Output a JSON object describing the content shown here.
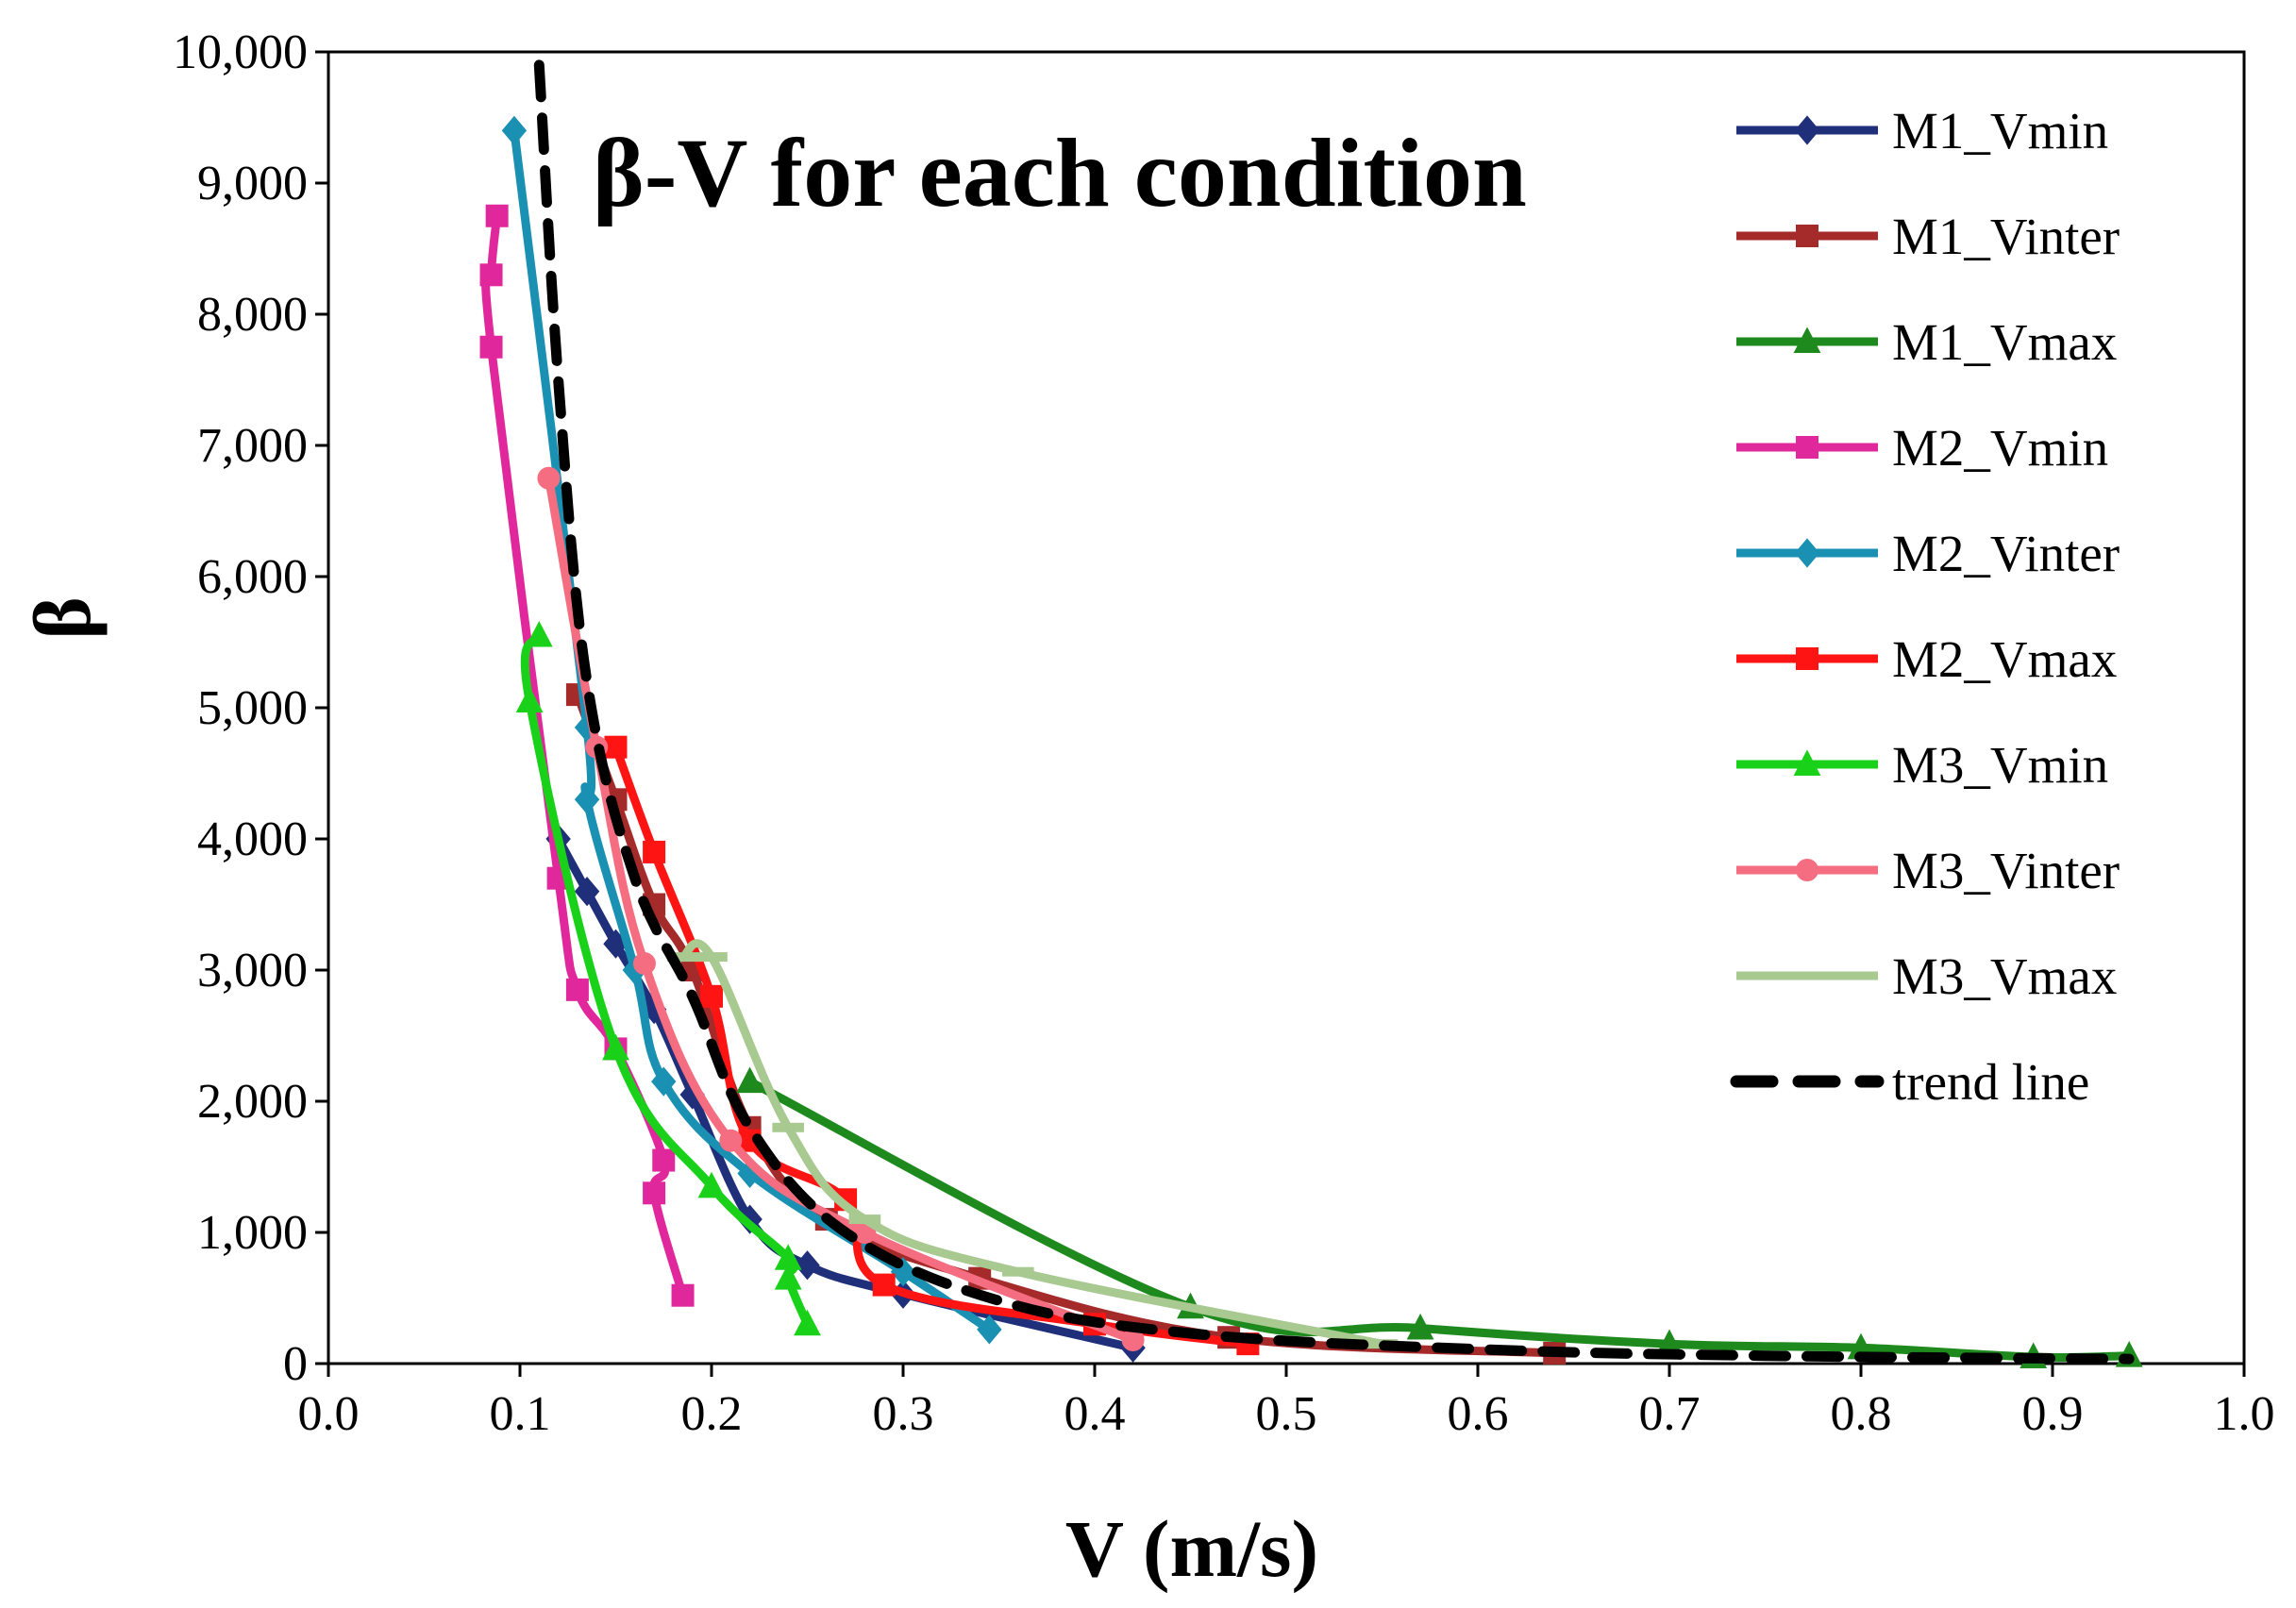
{
  "chart_data": {
    "type": "line",
    "title": "β-V for each condition",
    "xlabel": "V (m/s)",
    "ylabel": "β",
    "xlim": [
      0,
      1.0
    ],
    "ylim": [
      0,
      10000
    ],
    "x_ticks": [
      0,
      0.1,
      0.2,
      0.3,
      0.4,
      0.5,
      0.6,
      0.7,
      0.8,
      0.9,
      1.0
    ],
    "x_tick_labels": [
      "0.0",
      "0.1",
      "0.2",
      "0.3",
      "0.4",
      "0.5",
      "0.6",
      "0.7",
      "0.8",
      "0.9",
      "1.0"
    ],
    "y_ticks": [
      0,
      1000,
      2000,
      3000,
      4000,
      5000,
      6000,
      7000,
      8000,
      9000,
      10000
    ],
    "y_tick_labels": [
      "0",
      "1,000",
      "2,000",
      "3,000",
      "4,000",
      "5,000",
      "6,000",
      "7,000",
      "8,000",
      "9,000",
      "10,000"
    ],
    "grid": false,
    "legend_position": "right",
    "series": [
      {
        "name": "M1_Vmin",
        "color": "#1f2f7a",
        "marker": "diamond",
        "points": [
          [
            0.12,
            4000
          ],
          [
            0.135,
            3600
          ],
          [
            0.15,
            3200
          ],
          [
            0.17,
            2700
          ],
          [
            0.19,
            2050
          ],
          [
            0.22,
            1100
          ],
          [
            0.25,
            750
          ],
          [
            0.3,
            530
          ],
          [
            0.42,
            120
          ]
        ]
      },
      {
        "name": "M1_Vinter",
        "color": "#a52a2a",
        "marker": "square",
        "points": [
          [
            0.13,
            5100
          ],
          [
            0.15,
            4300
          ],
          [
            0.17,
            3500
          ],
          [
            0.19,
            3000
          ],
          [
            0.22,
            1800
          ],
          [
            0.26,
            1100
          ],
          [
            0.34,
            650
          ],
          [
            0.47,
            200
          ],
          [
            0.64,
            80
          ]
        ]
      },
      {
        "name": "M1_Vmax",
        "color": "#1e8a1e",
        "marker": "triangle",
        "points": [
          [
            0.22,
            2150
          ],
          [
            0.45,
            430
          ],
          [
            0.57,
            270
          ],
          [
            0.7,
            150
          ],
          [
            0.8,
            120
          ],
          [
            0.89,
            50
          ],
          [
            0.94,
            60
          ]
        ]
      },
      {
        "name": "M2_Vmin",
        "color": "#e0289c",
        "marker": "square",
        "points": [
          [
            0.088,
            8750
          ],
          [
            0.085,
            8300
          ],
          [
            0.085,
            7750
          ],
          [
            0.12,
            3700
          ],
          [
            0.13,
            2850
          ],
          [
            0.15,
            2400
          ],
          [
            0.175,
            1550
          ],
          [
            0.17,
            1300
          ],
          [
            0.185,
            520
          ]
        ]
      },
      {
        "name": "M2_Vinter",
        "color": "#1a91b3",
        "marker": "diamond",
        "points": [
          [
            0.097,
            9400
          ],
          [
            0.135,
            4850
          ],
          [
            0.135,
            4300
          ],
          [
            0.16,
            3000
          ],
          [
            0.175,
            2150
          ],
          [
            0.22,
            1450
          ],
          [
            0.3,
            700
          ],
          [
            0.345,
            260
          ]
        ]
      },
      {
        "name": "M2_Vmax",
        "color": "#ff1414",
        "marker": "square",
        "points": [
          [
            0.15,
            4700
          ],
          [
            0.17,
            3900
          ],
          [
            0.2,
            2800
          ],
          [
            0.22,
            1700
          ],
          [
            0.27,
            1250
          ],
          [
            0.29,
            600
          ],
          [
            0.4,
            300
          ],
          [
            0.48,
            150
          ]
        ]
      },
      {
        "name": "M3_Vmin",
        "color": "#19d119",
        "marker": "triangle",
        "points": [
          [
            0.11,
            5550
          ],
          [
            0.105,
            5050
          ],
          [
            0.15,
            2400
          ],
          [
            0.2,
            1350
          ],
          [
            0.24,
            800
          ],
          [
            0.24,
            650
          ],
          [
            0.25,
            300
          ]
        ]
      },
      {
        "name": "M3_Vinter",
        "color": "#f56d80",
        "marker": "circle",
        "points": [
          [
            0.115,
            6750
          ],
          [
            0.14,
            4700
          ],
          [
            0.165,
            3050
          ],
          [
            0.21,
            1700
          ],
          [
            0.28,
            1000
          ],
          [
            0.42,
            180
          ]
        ]
      },
      {
        "name": "M3_Vmax",
        "color": "#a8c990",
        "marker": "dash",
        "points": [
          [
            0.185,
            3100
          ],
          [
            0.2,
            3100
          ],
          [
            0.24,
            1800
          ],
          [
            0.28,
            1100
          ],
          [
            0.36,
            700
          ],
          [
            0.55,
            150
          ]
        ]
      }
    ],
    "trend_line": {
      "name": "trend line",
      "color": "#000000",
      "style": "dashed",
      "points": [
        [
          0.11,
          9900
        ],
        [
          0.12,
          7500
        ],
        [
          0.135,
          5200
        ],
        [
          0.16,
          3700
        ],
        [
          0.19,
          2800
        ],
        [
          0.22,
          1800
        ],
        [
          0.27,
          1000
        ],
        [
          0.35,
          480
        ],
        [
          0.45,
          230
        ],
        [
          0.6,
          110
        ],
        [
          0.75,
          60
        ],
        [
          0.94,
          35
        ]
      ]
    }
  }
}
